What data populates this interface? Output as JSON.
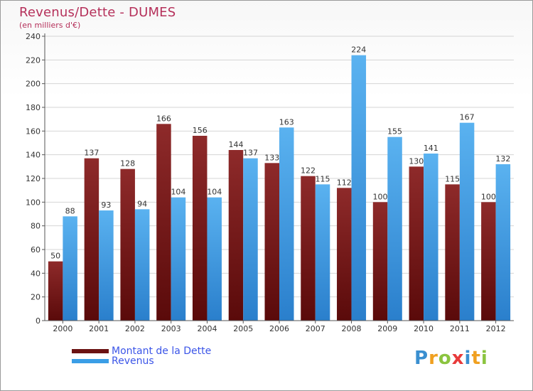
{
  "header": {
    "title": "Revenus/Dette - DUMES",
    "subtitle": "(en milliers d'€)"
  },
  "legend": {
    "items": [
      {
        "label": "Montant de la Dette",
        "color": "#7a1c1c"
      },
      {
        "label": "Revenus",
        "color": "#3a9ee6"
      }
    ]
  },
  "logo": {
    "text": "Proxiti",
    "letters": [
      {
        "ch": "P",
        "color": "#3a8fd0"
      },
      {
        "ch": "r",
        "color": "#f0a020"
      },
      {
        "ch": "o",
        "color": "#8bc43f"
      },
      {
        "ch": "x",
        "color": "#e83a3a"
      },
      {
        "ch": "i",
        "color": "#3a8fd0"
      },
      {
        "ch": "t",
        "color": "#f0a020"
      },
      {
        "ch": "i",
        "color": "#8bc43f"
      }
    ]
  },
  "chart_data": {
    "type": "bar",
    "title": "Revenus/Dette - DUMES",
    "subtitle": "(en milliers d'€)",
    "categories": [
      "2000",
      "2001",
      "2002",
      "2003",
      "2004",
      "2005",
      "2006",
      "2007",
      "2008",
      "2009",
      "2010",
      "2011",
      "2012"
    ],
    "series": [
      {
        "name": "Montant de la Dette",
        "color": "#7a1c1c",
        "values": [
          50,
          137,
          128,
          166,
          156,
          144,
          133,
          122,
          112,
          100,
          130,
          115,
          100
        ]
      },
      {
        "name": "Revenus",
        "color": "#3a9ee6",
        "values": [
          88,
          93,
          94,
          104,
          104,
          137,
          163,
          115,
          224,
          155,
          141,
          167,
          132
        ]
      }
    ],
    "ylim": [
      0,
      240
    ],
    "yticks": [
      0,
      20,
      40,
      60,
      80,
      100,
      120,
      140,
      160,
      180,
      200,
      220,
      240
    ],
    "grid": true,
    "legend_position": "bottom-left"
  }
}
